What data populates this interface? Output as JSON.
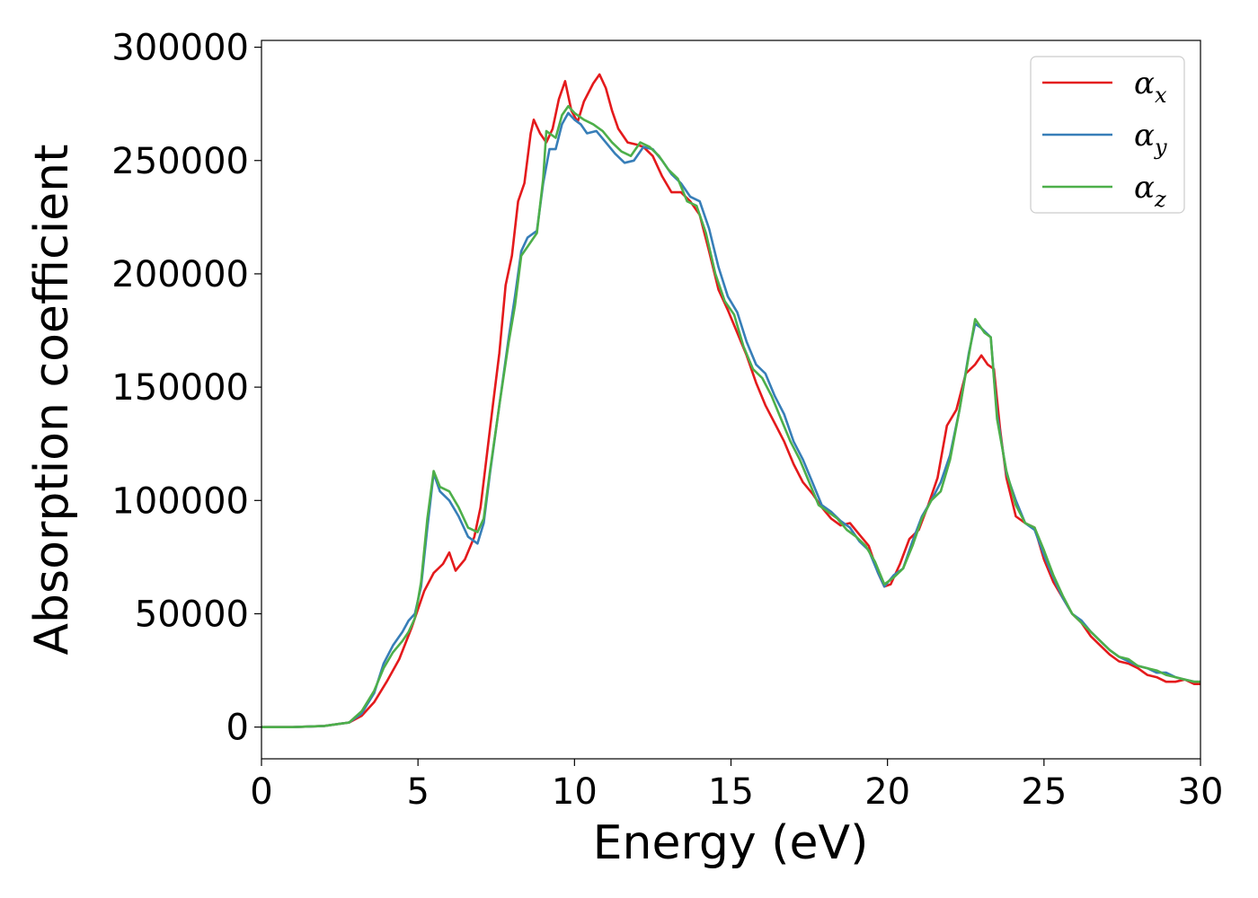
{
  "chart_data": {
    "type": "line",
    "xlabel": "Energy (eV)",
    "ylabel": "Absorption coefficient",
    "xlim": [
      0,
      30
    ],
    "ylim": [
      -14000,
      303000
    ],
    "xticks": [
      "0",
      "5",
      "10",
      "15",
      "20",
      "25",
      "30"
    ],
    "yticks": [
      "0",
      "50000",
      "100000",
      "150000",
      "200000",
      "250000",
      "300000"
    ],
    "grid": false,
    "legend_position": "top-right",
    "series": [
      {
        "name": "α",
        "subscript": "x",
        "color": "#e41a1c",
        "points": [
          [
            0,
            0
          ],
          [
            1,
            0
          ],
          [
            2,
            500
          ],
          [
            2.8,
            2000
          ],
          [
            3.2,
            5000
          ],
          [
            3.6,
            11000
          ],
          [
            4,
            20000
          ],
          [
            4.4,
            30000
          ],
          [
            4.8,
            44000
          ],
          [
            5.2,
            60000
          ],
          [
            5.5,
            68000
          ],
          [
            5.8,
            72000
          ],
          [
            6,
            77000
          ],
          [
            6.2,
            69000
          ],
          [
            6.5,
            74000
          ],
          [
            6.8,
            84000
          ],
          [
            7,
            97000
          ],
          [
            7.2,
            120000
          ],
          [
            7.4,
            143000
          ],
          [
            7.6,
            165000
          ],
          [
            7.8,
            195000
          ],
          [
            8,
            208000
          ],
          [
            8.2,
            232000
          ],
          [
            8.4,
            240000
          ],
          [
            8.6,
            262000
          ],
          [
            8.7,
            268000
          ],
          [
            8.9,
            262000
          ],
          [
            9.1,
            258000
          ],
          [
            9.3,
            264000
          ],
          [
            9.5,
            277000
          ],
          [
            9.7,
            285000
          ],
          [
            9.9,
            272000
          ],
          [
            10.1,
            267000
          ],
          [
            10.3,
            276000
          ],
          [
            10.6,
            284000
          ],
          [
            10.8,
            288000
          ],
          [
            11,
            282000
          ],
          [
            11.2,
            272000
          ],
          [
            11.4,
            264000
          ],
          [
            11.7,
            258000
          ],
          [
            12,
            257000
          ],
          [
            12.2,
            256000
          ],
          [
            12.5,
            252000
          ],
          [
            12.8,
            243000
          ],
          [
            13.1,
            236000
          ],
          [
            13.4,
            236000
          ],
          [
            13.7,
            232000
          ],
          [
            14,
            226000
          ],
          [
            14.3,
            210000
          ],
          [
            14.6,
            193000
          ],
          [
            14.9,
            184000
          ],
          [
            15.2,
            174000
          ],
          [
            15.5,
            164000
          ],
          [
            15.8,
            152000
          ],
          [
            16.1,
            142000
          ],
          [
            16.4,
            134000
          ],
          [
            16.7,
            126000
          ],
          [
            17,
            116000
          ],
          [
            17.3,
            108000
          ],
          [
            17.6,
            103000
          ],
          [
            17.9,
            97000
          ],
          [
            18.2,
            92000
          ],
          [
            18.5,
            89000
          ],
          [
            18.8,
            90000
          ],
          [
            19.1,
            85000
          ],
          [
            19.4,
            80000
          ],
          [
            19.7,
            68000
          ],
          [
            19.9,
            62000
          ],
          [
            20.1,
            63000
          ],
          [
            20.4,
            72000
          ],
          [
            20.7,
            83000
          ],
          [
            21,
            87000
          ],
          [
            21.3,
            98000
          ],
          [
            21.6,
            110000
          ],
          [
            21.9,
            133000
          ],
          [
            22.2,
            140000
          ],
          [
            22.5,
            156000
          ],
          [
            22.8,
            160000
          ],
          [
            23,
            164000
          ],
          [
            23.2,
            160000
          ],
          [
            23.4,
            158000
          ],
          [
            23.6,
            131000
          ],
          [
            23.8,
            110000
          ],
          [
            24.1,
            93000
          ],
          [
            24.4,
            90000
          ],
          [
            24.7,
            88000
          ],
          [
            25,
            74000
          ],
          [
            25.3,
            64000
          ],
          [
            25.6,
            57000
          ],
          [
            25.9,
            50000
          ],
          [
            26.2,
            46000
          ],
          [
            26.5,
            40000
          ],
          [
            26.8,
            36000
          ],
          [
            27.1,
            32000
          ],
          [
            27.4,
            29000
          ],
          [
            27.7,
            28000
          ],
          [
            28,
            26000
          ],
          [
            28.3,
            23000
          ],
          [
            28.6,
            22000
          ],
          [
            28.9,
            20000
          ],
          [
            29.2,
            20000
          ],
          [
            29.5,
            21000
          ],
          [
            29.8,
            19000
          ],
          [
            30,
            19000
          ]
        ]
      },
      {
        "name": "α",
        "subscript": "y",
        "color": "#377eb8",
        "points": [
          [
            0,
            0
          ],
          [
            1,
            0
          ],
          [
            2,
            500
          ],
          [
            2.8,
            2000
          ],
          [
            3.2,
            6000
          ],
          [
            3.6,
            15000
          ],
          [
            3.9,
            28000
          ],
          [
            4.2,
            36000
          ],
          [
            4.5,
            42000
          ],
          [
            4.7,
            47000
          ],
          [
            4.9,
            50000
          ],
          [
            5.1,
            62000
          ],
          [
            5.3,
            88000
          ],
          [
            5.5,
            112000
          ],
          [
            5.7,
            104000
          ],
          [
            6,
            100000
          ],
          [
            6.3,
            93000
          ],
          [
            6.6,
            84000
          ],
          [
            6.9,
            81000
          ],
          [
            7.1,
            90000
          ],
          [
            7.3,
            112000
          ],
          [
            7.6,
            142000
          ],
          [
            7.9,
            172000
          ],
          [
            8.1,
            190000
          ],
          [
            8.3,
            210000
          ],
          [
            8.5,
            216000
          ],
          [
            8.8,
            219000
          ],
          [
            9,
            240000
          ],
          [
            9.2,
            255000
          ],
          [
            9.4,
            255000
          ],
          [
            9.6,
            266000
          ],
          [
            9.8,
            271000
          ],
          [
            10,
            268000
          ],
          [
            10.2,
            266000
          ],
          [
            10.4,
            262000
          ],
          [
            10.7,
            263000
          ],
          [
            11,
            258000
          ],
          [
            11.3,
            253000
          ],
          [
            11.6,
            249000
          ],
          [
            11.9,
            250000
          ],
          [
            12.2,
            256000
          ],
          [
            12.5,
            255000
          ],
          [
            12.8,
            250000
          ],
          [
            13.1,
            244000
          ],
          [
            13.4,
            240000
          ],
          [
            13.7,
            234000
          ],
          [
            14,
            232000
          ],
          [
            14.3,
            220000
          ],
          [
            14.6,
            203000
          ],
          [
            14.9,
            190000
          ],
          [
            15.2,
            183000
          ],
          [
            15.5,
            170000
          ],
          [
            15.8,
            160000
          ],
          [
            16.1,
            156000
          ],
          [
            16.4,
            146000
          ],
          [
            16.7,
            138000
          ],
          [
            17,
            126000
          ],
          [
            17.3,
            118000
          ],
          [
            17.6,
            108000
          ],
          [
            17.9,
            98000
          ],
          [
            18.2,
            95000
          ],
          [
            18.5,
            91000
          ],
          [
            18.8,
            88000
          ],
          [
            19.1,
            82000
          ],
          [
            19.4,
            78000
          ],
          [
            19.7,
            68000
          ],
          [
            19.9,
            62000
          ],
          [
            20.2,
            67000
          ],
          [
            20.5,
            70000
          ],
          [
            20.8,
            82000
          ],
          [
            21.1,
            93000
          ],
          [
            21.4,
            100000
          ],
          [
            21.7,
            108000
          ],
          [
            22,
            120000
          ],
          [
            22.3,
            140000
          ],
          [
            22.6,
            165000
          ],
          [
            22.8,
            178000
          ],
          [
            23,
            176000
          ],
          [
            23.3,
            172000
          ],
          [
            23.5,
            138000
          ],
          [
            23.8,
            112000
          ],
          [
            24.1,
            100000
          ],
          [
            24.4,
            90000
          ],
          [
            24.7,
            87000
          ],
          [
            25,
            76000
          ],
          [
            25.3,
            66000
          ],
          [
            25.6,
            57000
          ],
          [
            25.9,
            50000
          ],
          [
            26.2,
            47000
          ],
          [
            26.5,
            42000
          ],
          [
            26.8,
            38000
          ],
          [
            27.1,
            34000
          ],
          [
            27.4,
            31000
          ],
          [
            27.7,
            29000
          ],
          [
            28,
            27000
          ],
          [
            28.3,
            26000
          ],
          [
            28.6,
            24000
          ],
          [
            28.9,
            24000
          ],
          [
            29.2,
            22000
          ],
          [
            29.5,
            21000
          ],
          [
            29.8,
            20000
          ],
          [
            30,
            20000
          ]
        ]
      },
      {
        "name": "α",
        "subscript": "z",
        "color": "#4daf4a",
        "points": [
          [
            0,
            0
          ],
          [
            1,
            0
          ],
          [
            2,
            500
          ],
          [
            2.8,
            2000
          ],
          [
            3.2,
            7000
          ],
          [
            3.6,
            16000
          ],
          [
            3.9,
            26000
          ],
          [
            4.2,
            33000
          ],
          [
            4.5,
            38000
          ],
          [
            4.7,
            42000
          ],
          [
            4.9,
            48000
          ],
          [
            5.1,
            64000
          ],
          [
            5.3,
            92000
          ],
          [
            5.5,
            113000
          ],
          [
            5.7,
            106000
          ],
          [
            6,
            104000
          ],
          [
            6.3,
            97000
          ],
          [
            6.6,
            88000
          ],
          [
            6.9,
            86000
          ],
          [
            7.1,
            92000
          ],
          [
            7.3,
            113000
          ],
          [
            7.6,
            142000
          ],
          [
            7.9,
            170000
          ],
          [
            8.1,
            186000
          ],
          [
            8.3,
            208000
          ],
          [
            8.5,
            212000
          ],
          [
            8.8,
            218000
          ],
          [
            9,
            242000
          ],
          [
            9.1,
            263000
          ],
          [
            9.4,
            260000
          ],
          [
            9.6,
            270000
          ],
          [
            9.8,
            274000
          ],
          [
            10,
            271000
          ],
          [
            10.3,
            268000
          ],
          [
            10.6,
            266000
          ],
          [
            10.9,
            263000
          ],
          [
            11.2,
            258000
          ],
          [
            11.5,
            254000
          ],
          [
            11.8,
            252000
          ],
          [
            12.1,
            258000
          ],
          [
            12.4,
            256000
          ],
          [
            12.7,
            252000
          ],
          [
            13,
            246000
          ],
          [
            13.3,
            242000
          ],
          [
            13.6,
            232000
          ],
          [
            13.9,
            230000
          ],
          [
            14.2,
            218000
          ],
          [
            14.5,
            200000
          ],
          [
            14.8,
            188000
          ],
          [
            15.1,
            182000
          ],
          [
            15.4,
            168000
          ],
          [
            15.7,
            158000
          ],
          [
            16,
            154000
          ],
          [
            16.3,
            146000
          ],
          [
            16.6,
            136000
          ],
          [
            16.9,
            126000
          ],
          [
            17.2,
            118000
          ],
          [
            17.5,
            108000
          ],
          [
            17.8,
            98000
          ],
          [
            18.1,
            95000
          ],
          [
            18.4,
            92000
          ],
          [
            18.7,
            87000
          ],
          [
            19,
            84000
          ],
          [
            19.3,
            80000
          ],
          [
            19.6,
            73000
          ],
          [
            19.9,
            63000
          ],
          [
            20.2,
            66000
          ],
          [
            20.5,
            70000
          ],
          [
            20.8,
            80000
          ],
          [
            21.1,
            92000
          ],
          [
            21.4,
            100000
          ],
          [
            21.7,
            104000
          ],
          [
            22,
            118000
          ],
          [
            22.3,
            140000
          ],
          [
            22.6,
            164000
          ],
          [
            22.8,
            180000
          ],
          [
            23.1,
            174000
          ],
          [
            23.3,
            172000
          ],
          [
            23.5,
            136000
          ],
          [
            23.8,
            113000
          ],
          [
            24.1,
            98000
          ],
          [
            24.4,
            90000
          ],
          [
            24.7,
            88000
          ],
          [
            25,
            78000
          ],
          [
            25.3,
            67000
          ],
          [
            25.6,
            58000
          ],
          [
            25.9,
            50000
          ],
          [
            26.2,
            46000
          ],
          [
            26.5,
            42000
          ],
          [
            26.8,
            38000
          ],
          [
            27.1,
            34000
          ],
          [
            27.4,
            31000
          ],
          [
            27.7,
            30000
          ],
          [
            28,
            27000
          ],
          [
            28.3,
            26000
          ],
          [
            28.6,
            25000
          ],
          [
            28.9,
            23000
          ],
          [
            29.2,
            22000
          ],
          [
            29.5,
            21000
          ],
          [
            29.8,
            20000
          ],
          [
            30,
            20000
          ]
        ]
      }
    ]
  }
}
